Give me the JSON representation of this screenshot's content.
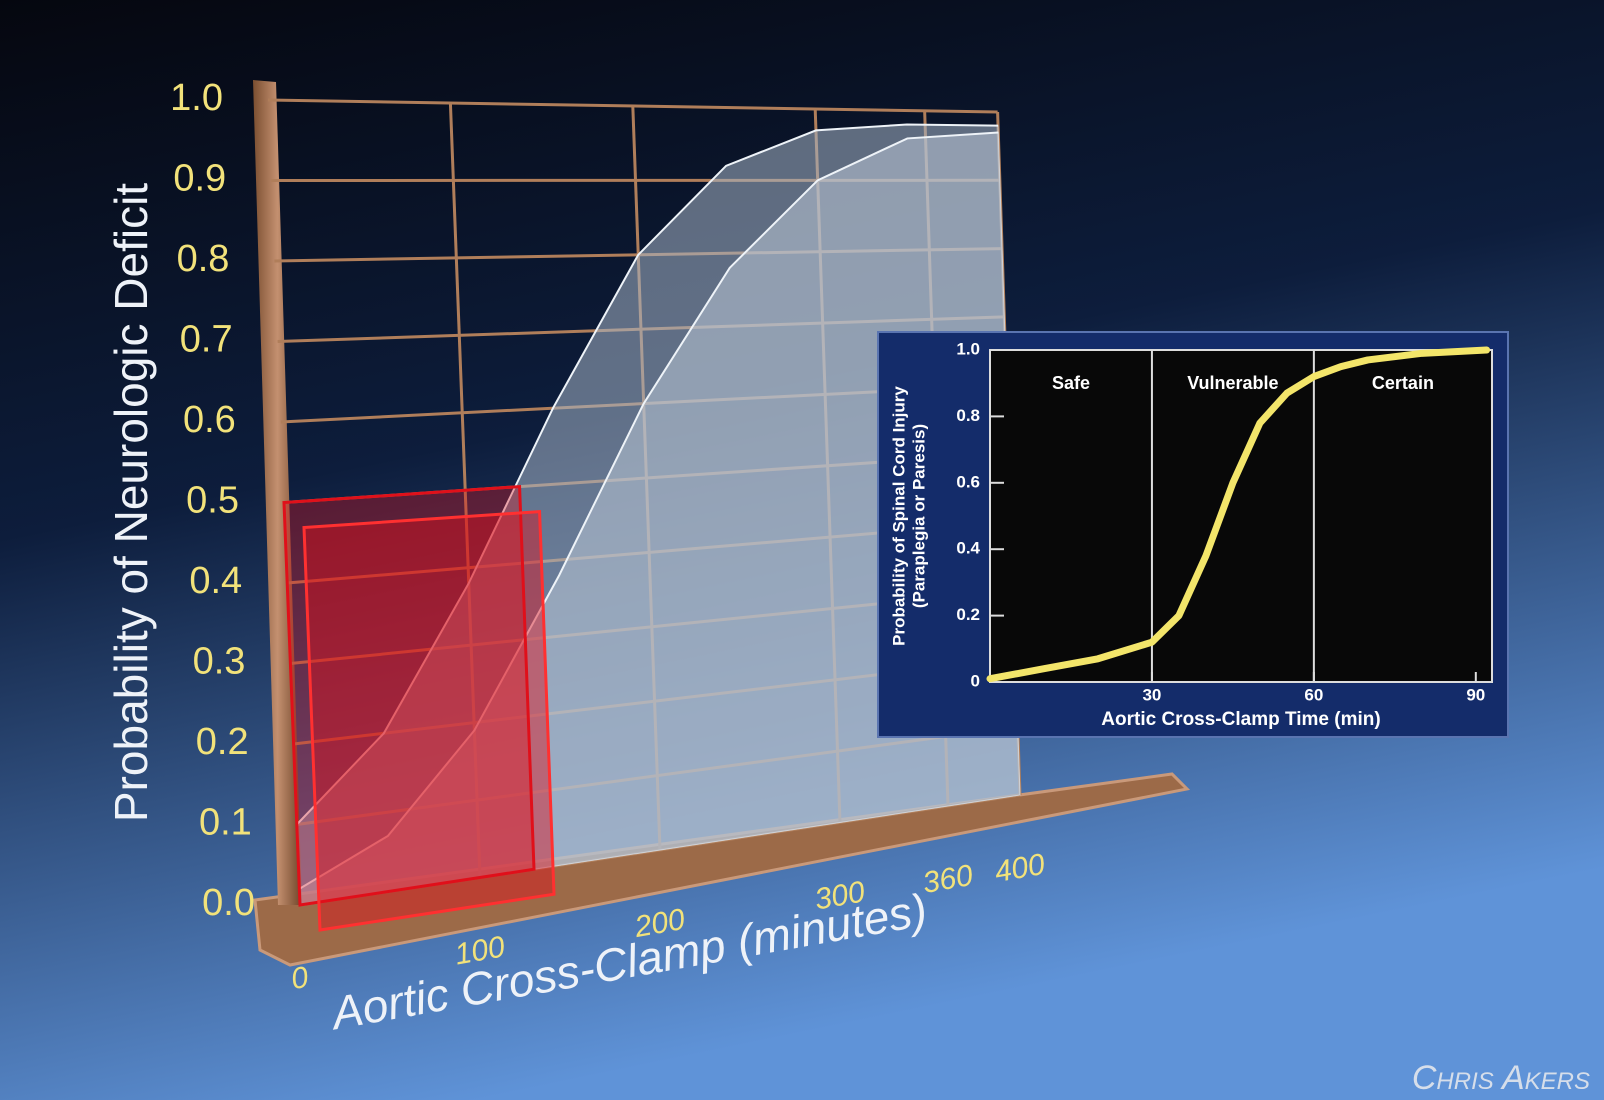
{
  "chart_data": [
    {
      "type": "area3d",
      "ylabel": "Probability of Neurologic Deficit",
      "xlabel": "Aortic Cross-Clamp (minutes)",
      "x": [
        0,
        50,
        100,
        150,
        200,
        250,
        300,
        350,
        400
      ],
      "series": [
        {
          "color": "#b9c7d6",
          "values": [
            0.02,
            0.07,
            0.19,
            0.38,
            0.6,
            0.78,
            0.9,
            0.96,
            0.97
          ]
        },
        {
          "color": "#a6b5c6",
          "values": [
            0.1,
            0.2,
            0.38,
            0.6,
            0.8,
            0.92,
            0.97,
            0.98,
            0.98
          ]
        }
      ],
      "highlight": {
        "x": [
          0,
          130
        ],
        "y": 0.5,
        "color": "#e0101a"
      },
      "xlim": [
        0,
        400
      ],
      "ylim": [
        0,
        1
      ],
      "xticks": [
        0,
        100,
        200,
        300,
        360,
        400
      ],
      "yticks": [
        {
          "value": 0,
          "label": "0.0"
        },
        0.1,
        0.2,
        0.3,
        0.4,
        0.5,
        0.6,
        0.7,
        0.8,
        0.9,
        {
          "value": 1,
          "label": "1.0"
        }
      ],
      "grid": true
    },
    {
      "type": "line",
      "ylabel": [
        "Probability of Spinal Cord Injury",
        "(Paraplegia or Paresis)"
      ],
      "xlabel": "Aortic Cross-Clamp Time (min)",
      "x": [
        0,
        10,
        20,
        30,
        35,
        40,
        45,
        50,
        55,
        60,
        65,
        70,
        80,
        92
      ],
      "series": [
        {
          "color": "#f3e56a",
          "values": [
            0.01,
            0.04,
            0.07,
            0.12,
            0.2,
            0.38,
            0.6,
            0.78,
            0.87,
            0.92,
            0.95,
            0.97,
            0.99,
            1.0
          ]
        }
      ],
      "zones": [
        {
          "label": "Safe",
          "from": 0,
          "to": 30
        },
        {
          "label": "Vulnerable",
          "from": 30,
          "to": 60
        },
        {
          "label": "Certain",
          "from": 60,
          "to": 93
        }
      ],
      "xlim": [
        0,
        93
      ],
      "ylim": [
        0,
        1
      ],
      "xticks": [
        30,
        60,
        90
      ],
      "yticks": [
        0,
        0.2,
        0.4,
        0.6,
        0.8,
        {
          "value": 1,
          "label": "1.0"
        }
      ]
    }
  ],
  "credit": "Chris Akers"
}
